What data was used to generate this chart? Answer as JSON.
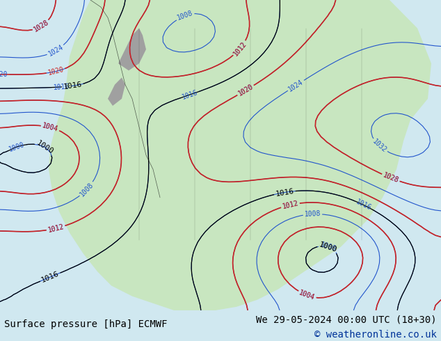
{
  "title_left": "Surface pressure [hPa] ECMWF",
  "title_right": "We 29-05-2024 00:00 UTC (18+30)",
  "copyright": "© weatheronline.co.uk",
  "bg_color": "#d0e8f0",
  "map_bg": "#d0e8f0",
  "land_color": "#c8e6c0",
  "text_color": "#000000",
  "bottom_bg": "#ffffff",
  "font_size_bottom": 10,
  "fig_width": 6.34,
  "fig_height": 4.9,
  "dpi": 100
}
